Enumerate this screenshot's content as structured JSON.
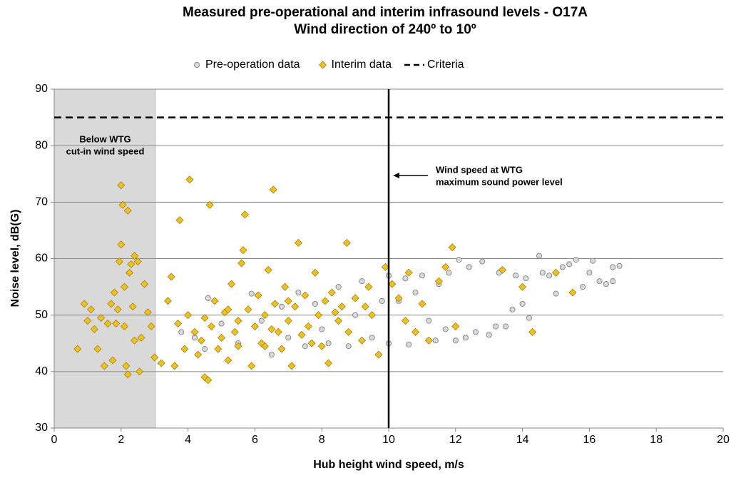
{
  "chart_data": {
    "type": "scatter",
    "title": "Measured pre-operational and interim infrasound levels - O17A",
    "subtitle": "Wind direction of 240º to 10º",
    "x_label": "Hub height wind speed, m/s",
    "y_label": "Noise level, dB(G)",
    "xlim": [
      0,
      20
    ],
    "xticks": [
      0,
      2,
      4,
      6,
      8,
      10,
      12,
      14,
      16,
      18,
      20
    ],
    "ylim": [
      30,
      90
    ],
    "yticks": [
      30,
      40,
      50,
      60,
      70,
      80,
      90
    ],
    "grid": true,
    "shaded_region": {
      "xlim": [
        0,
        3.05
      ],
      "color": "#d9d9d9",
      "text": [
        "Below WTG",
        "cut-in wind speed"
      ]
    },
    "reference_line": {
      "x": 10,
      "color": "#000000",
      "text": [
        "Wind speed at WTG",
        "maximum sound power level"
      ]
    },
    "series": [
      {
        "name": "Pre-operation data",
        "color": "#d9d9d9",
        "marker": "circle",
        "x": [
          3.8,
          4.2,
          4.5,
          4.6,
          5.0,
          5.5,
          5.9,
          6.2,
          6.5,
          6.8,
          7.0,
          7.3,
          7.5,
          7.8,
          8.0,
          8.2,
          8.5,
          8.8,
          9.0,
          9.2,
          9.5,
          9.8,
          10.0,
          10.0,
          10.3,
          10.5,
          10.6,
          10.8,
          11.0,
          11.2,
          11.4,
          11.5,
          11.7,
          11.8,
          12.0,
          12.1,
          12.3,
          12.4,
          12.6,
          12.8,
          13.0,
          13.2,
          13.3,
          13.5,
          13.7,
          13.8,
          14.0,
          14.1,
          14.2,
          14.5,
          14.6,
          14.8,
          15.0,
          15.2,
          15.4,
          15.6,
          15.8,
          16.0,
          16.1,
          16.3,
          16.5,
          16.7,
          16.9,
          16.7
        ],
        "values": [
          47,
          46,
          44,
          53,
          48.5,
          45,
          53.8,
          49,
          43,
          51.5,
          46,
          54,
          44.5,
          52,
          47.5,
          45,
          55,
          44.5,
          50,
          56,
          46,
          52.5,
          45,
          57,
          52.5,
          56.5,
          44.8,
          54,
          57,
          49,
          45.5,
          55.5,
          47.5,
          57.5,
          45.5,
          59.8,
          46,
          58.5,
          47,
          59.5,
          46.5,
          48,
          57.5,
          48,
          51,
          57,
          52,
          56.5,
          49.5,
          60.5,
          57.5,
          57,
          53.8,
          58.5,
          59,
          59.8,
          55,
          57.5,
          59.6,
          56,
          55.5,
          56,
          58.7,
          58.5
        ]
      },
      {
        "name": "Interim data",
        "color": "#f0c020",
        "marker": "diamond",
        "x": [
          0.7,
          0.9,
          1.0,
          1.1,
          1.2,
          1.3,
          1.4,
          1.5,
          1.6,
          1.7,
          1.75,
          1.8,
          1.9,
          2.0,
          2.0,
          2.05,
          2.1,
          2.15,
          2.2,
          2.25,
          2.3,
          2.35,
          2.4,
          2.5,
          2.55,
          2.6,
          2.7,
          2.8,
          2.9,
          3.0,
          1.95,
          2.2,
          2.4,
          1.85,
          2.1,
          3.2,
          3.4,
          3.5,
          3.6,
          3.7,
          3.75,
          3.9,
          4.0,
          4.05,
          4.2,
          4.3,
          4.4,
          4.5,
          4.6,
          4.65,
          4.7,
          4.8,
          4.9,
          5.0,
          5.1,
          5.2,
          5.3,
          5.4,
          5.5,
          5.6,
          5.65,
          5.7,
          5.8,
          5.9,
          6.0,
          6.1,
          6.2,
          6.3,
          6.4,
          6.5,
          6.55,
          6.6,
          6.8,
          6.9,
          7.0,
          7.1,
          7.2,
          7.3,
          7.4,
          7.5,
          7.6,
          7.8,
          7.9,
          8.0,
          8.1,
          8.2,
          8.3,
          8.5,
          8.6,
          8.75,
          8.8,
          9.0,
          9.2,
          9.4,
          9.5,
          9.7,
          9.9,
          10.1,
          10.3,
          10.5,
          10.6,
          10.8,
          11.0,
          11.2,
          11.5,
          11.7,
          11.9,
          12.0,
          13.4,
          14.0,
          14.3,
          15.0,
          15.5,
          5.5,
          6.7,
          7.7,
          8.4,
          9.3,
          4.5,
          5.2,
          6.3,
          7.0
        ],
        "values": [
          44,
          52,
          49,
          51,
          47.5,
          44,
          49.5,
          41,
          48.5,
          52,
          42,
          54,
          51,
          73,
          62.5,
          69.5,
          55,
          41,
          68.5,
          57.5,
          59,
          51.5,
          60.5,
          59.5,
          40,
          46,
          55.5,
          50.5,
          48,
          42.5,
          59.5,
          39.5,
          45.5,
          48.5,
          48,
          41.5,
          52.5,
          56.8,
          41,
          48.5,
          66.8,
          44,
          50,
          74,
          47,
          43,
          45.5,
          39,
          38.5,
          69.5,
          48,
          52.5,
          44,
          46,
          50.5,
          42,
          55.5,
          47,
          44.5,
          59.2,
          61.5,
          67.8,
          51,
          41,
          48,
          53.5,
          45,
          50,
          58,
          47.5,
          72.2,
          52,
          44,
          55,
          49,
          41,
          51.5,
          62.8,
          46.5,
          53.5,
          48,
          57.5,
          50,
          44.5,
          52.5,
          41.5,
          54,
          49,
          51.5,
          62.8,
          47,
          53,
          45.5,
          55,
          50,
          43,
          58.5,
          55.5,
          53,
          49,
          57.5,
          47,
          52,
          45.5,
          56,
          58.5,
          62,
          48,
          58,
          55,
          47,
          57.5,
          54,
          49,
          47,
          45,
          50.5,
          51.5,
          49.5,
          51,
          44.5,
          52.5
        ]
      },
      {
        "name": "Criteria",
        "color": "#000000",
        "marker": "dashed-line",
        "x": [
          0,
          20
        ],
        "values": [
          85,
          85
        ]
      }
    ]
  }
}
